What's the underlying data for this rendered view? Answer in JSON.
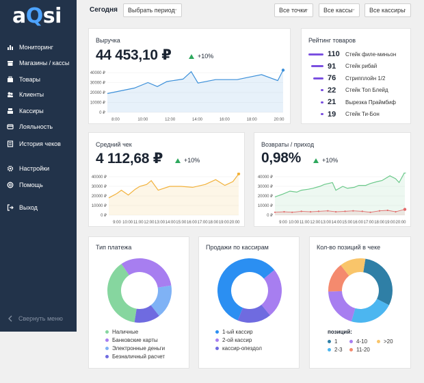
{
  "app": {
    "logo_a": "a",
    "logo_q": "Q",
    "logo_si": "si"
  },
  "sidebar": {
    "items": [
      {
        "label": "Мониторинг",
        "icon": "bar-chart-icon"
      },
      {
        "label": "Магазины / кассы",
        "icon": "store-icon"
      },
      {
        "label": "Товары",
        "icon": "goods-icon"
      },
      {
        "label": "Клиенты",
        "icon": "clients-icon"
      },
      {
        "label": "Кассиры",
        "icon": "register-icon"
      },
      {
        "label": "Лояльность",
        "icon": "loyalty-icon"
      },
      {
        "label": "История чеков",
        "icon": "receipt-history-icon"
      },
      {
        "label": "Настройки",
        "icon": "gear-icon"
      },
      {
        "label": "Помощь",
        "icon": "help-icon"
      },
      {
        "label": "Выход",
        "icon": "logout-icon"
      }
    ],
    "collapse_label": "Свернуть меню"
  },
  "topbar": {
    "title": "Сегодня",
    "period_label": "Выбрать период",
    "points_label": "Все точки",
    "registers_label": "Все кассы",
    "cashiers_label": "Все кассиры"
  },
  "revenue": {
    "title": "Выручка",
    "value": "44 453,10 ₽",
    "delta": "+10%",
    "color": "#3b8fd9",
    "chart_data": {
      "type": "line",
      "x_ticks": [
        "8:00",
        "10:00",
        "12:00",
        "14:00",
        "16:00",
        "18:00",
        "20:00"
      ],
      "y_ticks": [
        "40000 ₽",
        "30000 ₽",
        "20000 ₽",
        "10000 ₽",
        "0 ₽"
      ],
      "ylim": [
        0,
        40000
      ],
      "x": [
        7,
        9,
        10,
        10.7,
        11.4,
        12.6,
        13.2,
        13.7,
        15,
        16.6,
        17.3,
        18.4,
        19.6,
        20
      ],
      "values": [
        19000,
        24500,
        30000,
        26000,
        31000,
        33500,
        41000,
        29500,
        33000,
        33000,
        35000,
        38000,
        32000,
        42500
      ]
    }
  },
  "rating": {
    "title": "Рейтинг товаров",
    "color": "#7a4fe0",
    "items": [
      {
        "count": "110",
        "name": "Стейк филе-миньон",
        "value": 110
      },
      {
        "count": "91",
        "name": "Стейк рибай",
        "value": 91
      },
      {
        "count": "76",
        "name": "Стрипплойн 1/2",
        "value": 76
      },
      {
        "count": "22",
        "name": "Стейк Топ Блейд",
        "value": 22
      },
      {
        "count": "21",
        "name": "Вырезка Праймбиф",
        "value": 21
      },
      {
        "count": "19",
        "name": "Стейк Ти-Бон",
        "value": 19
      }
    ]
  },
  "avg_check": {
    "title": "Средний чек",
    "value": "4 112,68 ₽",
    "delta": "+10%",
    "color": "#f2b13a",
    "chart_data": {
      "type": "line",
      "x_ticks": [
        "9:00",
        "10:00",
        "11:00",
        "12:00",
        "13:00",
        "14:00",
        "15:00",
        "16:00",
        "17:00",
        "18:00",
        "19:00",
        "20:00"
      ],
      "y_ticks": [
        "40000 ₽",
        "30000 ₽",
        "20000 ₽",
        "10000 ₽",
        "0 ₽"
      ],
      "ylim": [
        0,
        40000
      ],
      "x": [
        8.7,
        9.4,
        9.8,
        10.4,
        11.0,
        11.4,
        12.0,
        12.4,
        13.0,
        14.0,
        15.0,
        16.0,
        17.1,
        18.0,
        18.8,
        19.5,
        20.0
      ],
      "values": [
        18000,
        22500,
        26000,
        21000,
        27000,
        30000,
        32000,
        36000,
        26000,
        30000,
        30000,
        29000,
        32000,
        37000,
        31000,
        35000,
        43000
      ]
    }
  },
  "returns": {
    "title": "Возвраты / приход",
    "value": "0,98%",
    "delta": "+10%",
    "chart_data": {
      "type": "line",
      "x_ticks": [
        "9:00",
        "10:00",
        "11:00",
        "12:00",
        "13:00",
        "14:00",
        "15:00",
        "16:00",
        "17:00",
        "18:00",
        "19:00",
        "20:00"
      ],
      "y_ticks": [
        "40000 ₽",
        "30000 ₽",
        "20000 ₽",
        "10000 ₽",
        "0 ₽"
      ],
      "ylim": [
        0,
        40000
      ],
      "series": [
        {
          "color": "#6bc98a",
          "x": [
            8.7,
            9.4,
            10.0,
            10.6,
            11.0,
            11.6,
            12.0,
            12.6,
            13.0,
            13.7,
            14.0,
            14.6,
            15.0,
            15.6,
            16.0,
            16.6,
            17.0,
            17.6,
            18.0,
            18.7,
            19.2,
            19.5,
            20.0
          ],
          "values": [
            19000,
            22000,
            25000,
            24000,
            26000,
            27000,
            28000,
            30000,
            32000,
            34000,
            26000,
            30000,
            28000,
            29000,
            31000,
            31000,
            33000,
            35000,
            36000,
            41000,
            38000,
            34000,
            45000
          ]
        },
        {
          "color": "#e26a6a",
          "x": [
            8.7,
            9.5,
            10.2,
            11.0,
            11.8,
            12.5,
            13.3,
            14.0,
            14.8,
            15.5,
            16.3,
            17.0,
            17.8,
            18.5,
            19.2,
            20.0
          ],
          "values": [
            3000,
            3500,
            3000,
            4000,
            3500,
            4000,
            4500,
            3500,
            4000,
            4500,
            4000,
            3000,
            4500,
            5000,
            3500,
            6000
          ]
        }
      ]
    }
  },
  "payment_type": {
    "title": "Тип платежа",
    "chart_data": {
      "type": "pie",
      "slices": [
        {
          "label": "Наличные",
          "value": 38,
          "color": "#86d69f"
        },
        {
          "label": "Банковские карты",
          "value": 32,
          "color": "#a77ef0"
        },
        {
          "label": "Электронные деньги",
          "value": 17,
          "color": "#7fb2f5"
        },
        {
          "label": "Безналичный расчет",
          "value": 13,
          "color": "#6f6be0"
        }
      ]
    }
  },
  "sales_by_cashier": {
    "title": "Продажи по кассирам",
    "chart_data": {
      "type": "pie",
      "slices": [
        {
          "label": "1-ый кассир",
          "value": 58,
          "color": "#2b8ff2"
        },
        {
          "label": "2-ой кассир",
          "value": 25,
          "color": "#a77ef0"
        },
        {
          "label": "кассир-опездол",
          "value": 17,
          "color": "#6f6be0"
        }
      ]
    }
  },
  "positions_count": {
    "title": "Кол-во позиций в чеке",
    "legend_title": "позиций:",
    "chart_data": {
      "type": "pie",
      "slices": [
        {
          "label": "1",
          "value": 30,
          "color": "#2f7fa6"
        },
        {
          "label": "2-3",
          "value": 22,
          "color": "#4cb6f0"
        },
        {
          "label": "4-10",
          "value": 20,
          "color": "#a77ef0"
        },
        {
          "label": "11-20",
          "value": 15,
          "color": "#f48a6e"
        },
        {
          "label": ">20",
          "value": 13,
          "color": "#f9c56a"
        }
      ]
    }
  }
}
